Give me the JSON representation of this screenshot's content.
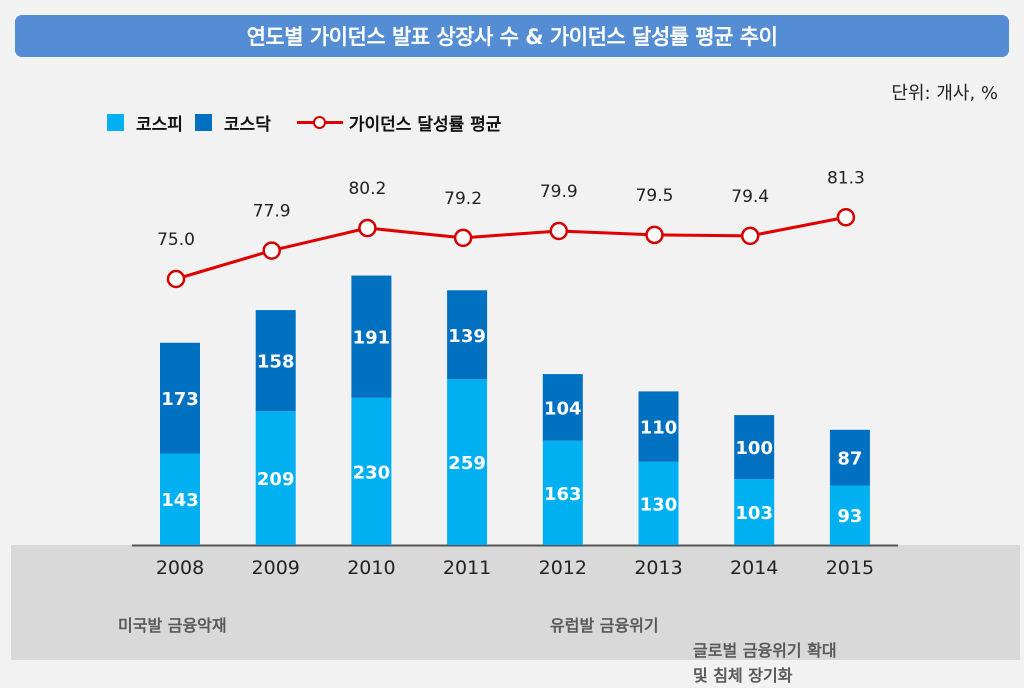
{
  "title": "연도별 가이던스 발표 상장사 수 & 가이던스 달성률 평균 추이",
  "unit_label": "단위: 개사, %",
  "legend": [
    {
      "label": "코스피",
      "color": "#00b0f0",
      "type": "bar"
    },
    {
      "label": "코스닥",
      "color": "#0070c0",
      "type": "bar"
    },
    {
      "label": "가이던스 달성률 평균",
      "color": "#e00000",
      "type": "line"
    }
  ],
  "annotations": [
    {
      "text": "미국발 금융악재",
      "year": "2008"
    },
    {
      "text": "유럽발 금융위기",
      "year": "2012"
    },
    {
      "text": "글로벌 금융위기 확대\n및 침체 장기화",
      "year": "2013-2014"
    }
  ],
  "chart_data": {
    "type": "bar",
    "stacked": true,
    "title": "연도별 가이던스 발표 상장사 수 & 가이던스 달성률 평균 추이",
    "xlabel": "",
    "ylabel": "",
    "categories": [
      "2008",
      "2009",
      "2010",
      "2011",
      "2012",
      "2013",
      "2014",
      "2015"
    ],
    "series": [
      {
        "name": "코스피",
        "type": "bar",
        "color": "#00b0f0",
        "values": [
          143,
          209,
          230,
          259,
          163,
          130,
          103,
          93
        ]
      },
      {
        "name": "코스닥",
        "type": "bar",
        "color": "#0070c0",
        "values": [
          173,
          158,
          191,
          139,
          104,
          110,
          100,
          87
        ]
      },
      {
        "name": "가이던스 달성률 평균",
        "type": "line",
        "color": "#e00000",
        "values": [
          75.0,
          77.9,
          80.2,
          79.2,
          79.9,
          79.5,
          79.4,
          81.3
        ],
        "labels": [
          "75.0",
          "77.9",
          "80.2",
          "79.2",
          "79.9",
          "79.5",
          "79.4",
          "81.3"
        ]
      }
    ],
    "grid": false,
    "legend_position": "top-left"
  }
}
